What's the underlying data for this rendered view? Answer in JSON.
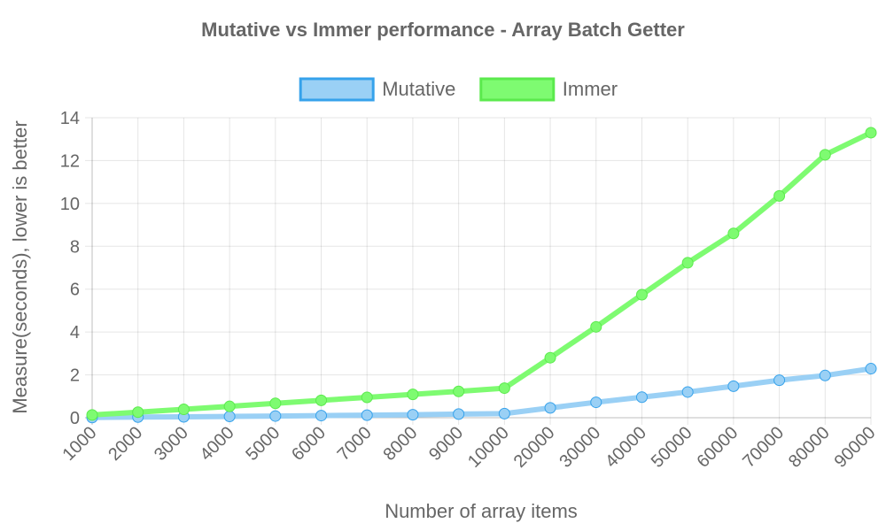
{
  "chart_data": {
    "type": "line",
    "title": "Mutative vs Immer performance - Array Batch Getter",
    "xlabel": "Number of array items",
    "ylabel": "Measure(seconds), lower is better",
    "categories": [
      "1000",
      "2000",
      "3000",
      "4000",
      "5000",
      "6000",
      "7000",
      "8000",
      "9000",
      "10000",
      "20000",
      "30000",
      "40000",
      "50000",
      "60000",
      "70000",
      "80000",
      "90000"
    ],
    "ylim": [
      0,
      14
    ],
    "yticks": [
      0,
      2,
      4,
      6,
      8,
      10,
      12,
      14
    ],
    "grid": true,
    "legend": "top-center",
    "series": [
      {
        "name": "Mutative",
        "color": "#36a2eb",
        "fill": "#9ad0f5",
        "values": [
          0.01,
          0.03,
          0.04,
          0.06,
          0.08,
          0.1,
          0.12,
          0.14,
          0.17,
          0.19,
          0.46,
          0.72,
          0.96,
          1.2,
          1.47,
          1.75,
          1.97,
          2.29
        ]
      },
      {
        "name": "Immer",
        "color": "#5bea4d",
        "fill": "#7efb71",
        "values": [
          0.13,
          0.26,
          0.39,
          0.53,
          0.67,
          0.81,
          0.95,
          1.09,
          1.23,
          1.38,
          2.8,
          4.24,
          5.74,
          7.23,
          8.6,
          10.35,
          12.27,
          13.3
        ]
      }
    ]
  }
}
